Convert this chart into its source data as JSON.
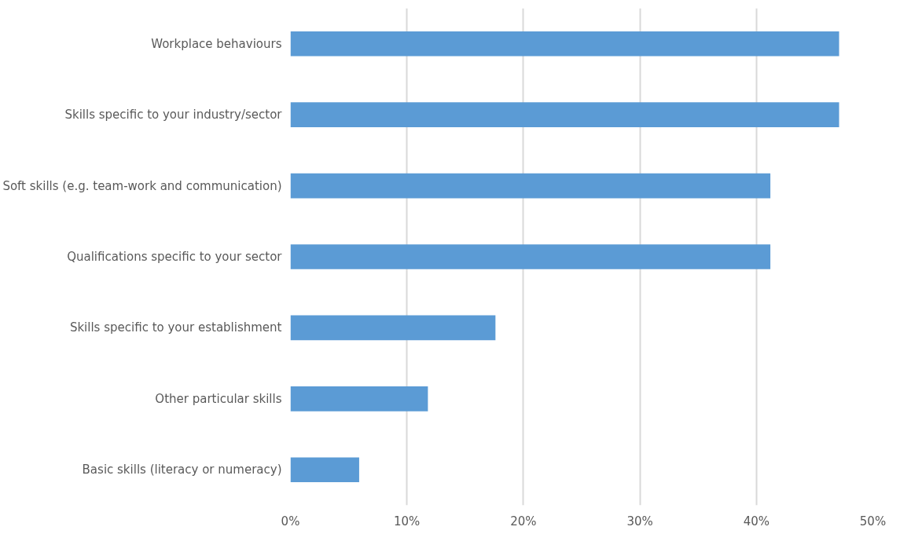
{
  "chart_data": {
    "type": "bar",
    "orientation": "horizontal",
    "categories": [
      "Workplace behaviours",
      "Skills specific to your industry/sector",
      "Soft skills (e.g. team-work and communication)",
      "Qualifications specific to your sector",
      "Skills specific to your establishment",
      "Other particular skills",
      "Basic skills (literacy or numeracy)"
    ],
    "values": [
      47.1,
      47.1,
      41.2,
      41.2,
      17.6,
      11.8,
      5.9
    ],
    "color": "#5b9bd5",
    "xlim": [
      0,
      50
    ],
    "xticks": [
      {
        "value": 0,
        "label": "0%"
      },
      {
        "value": 10,
        "label": "10%"
      },
      {
        "value": 20,
        "label": "20%"
      },
      {
        "value": 30,
        "label": "30%"
      },
      {
        "value": 40,
        "label": "40%"
      },
      {
        "value": 50,
        "label": "50%"
      }
    ],
    "grid": "x"
  }
}
